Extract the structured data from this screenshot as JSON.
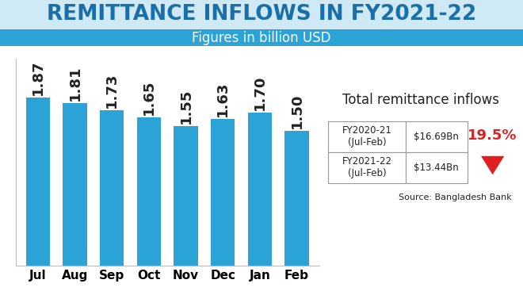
{
  "chart_data": {
    "type": "bar",
    "title": "REMITTANCE INFLOWS IN FY2021-22",
    "subtitle": "Figures in billion USD",
    "categories": [
      "Jul",
      "Aug",
      "Sep",
      "Oct",
      "Nov",
      "Dec",
      "Jan",
      "Feb"
    ],
    "values": [
      1.87,
      1.81,
      1.73,
      1.65,
      1.55,
      1.63,
      1.7,
      1.5
    ],
    "value_labels": [
      "1.87",
      "1.81",
      "1.73",
      "1.65",
      "1.55",
      "1.63",
      "1.70",
      "1.50"
    ],
    "data_labels": true,
    "color": "#2ba3d6",
    "ylim": [
      0,
      2.3
    ],
    "yticks": [],
    "tick_labels": "x",
    "grid": false,
    "source": "Source: Bangladesh Bank"
  },
  "summary": {
    "title": "Total remittance inflows",
    "rows": [
      [
        "FY2020-21\n(Jul-Feb)",
        "$16.69Bn"
      ],
      [
        "FY2021-22\n(Jul-Feb)",
        "$13.44Bn"
      ]
    ],
    "change": "19.5%"
  }
}
